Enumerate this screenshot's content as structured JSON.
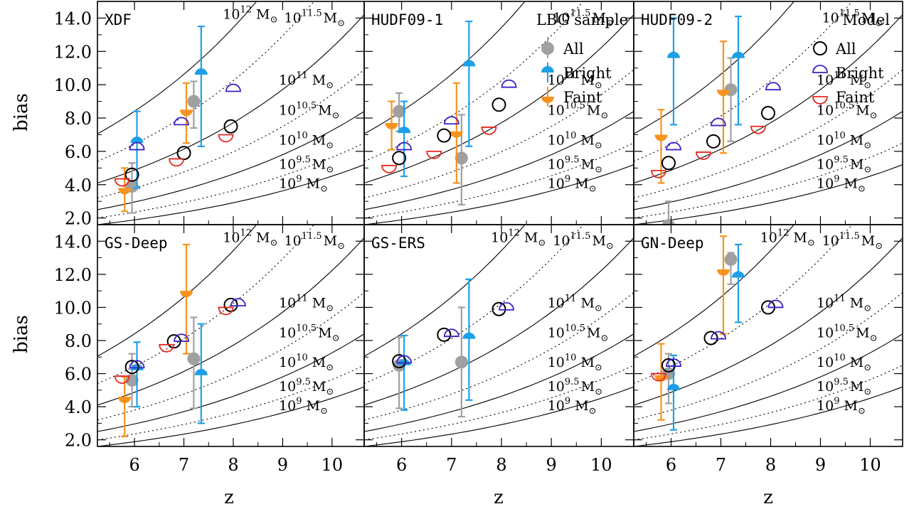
{
  "chart_data": {
    "type": "scatter",
    "xlabel": "z",
    "ylabel": "bias",
    "xlim": [
      5.25,
      10.65
    ],
    "ylim": [
      1.6,
      15.0
    ],
    "x_ticks": [
      "6",
      "7",
      "8",
      "9",
      "10"
    ],
    "y_ticks": [
      "2.0",
      "4.0",
      "6.0",
      "8.0",
      "10.0",
      "12.0",
      "14.0"
    ],
    "colors": {
      "All": "#a0a0a0",
      "Bright": "#1ea0e8",
      "Faint": "#f7931e",
      "Model_All": "#000000",
      "Model_Bright": "#3a22c8",
      "Model_Faint": "#e8281e"
    },
    "legend_lbg": {
      "title": "LBG sample",
      "items": [
        "All",
        "Bright",
        "Faint"
      ]
    },
    "legend_model": {
      "title": "Model",
      "items": [
        "All",
        "Bright",
        "Faint"
      ]
    },
    "halo_mass_tracks": [
      {
        "exp": "12",
        "style": "solid",
        "b_at_z": [
          [
            5.25,
            7.05
          ],
          [
            10.65,
            25.0
          ]
        ]
      },
      {
        "exp": "11.5",
        "style": "dotted",
        "b_at_z": [
          [
            5.25,
            5.4
          ],
          [
            10.65,
            19.0
          ]
        ]
      },
      {
        "exp": "11",
        "style": "solid",
        "b_at_z": [
          [
            5.25,
            4.1
          ],
          [
            10.65,
            14.2
          ]
        ]
      },
      {
        "exp": "10.5",
        "style": "dotted",
        "b_at_z": [
          [
            5.25,
            3.2
          ],
          [
            10.65,
            10.9
          ]
        ]
      },
      {
        "exp": "10",
        "style": "solid",
        "b_at_z": [
          [
            5.25,
            2.5
          ],
          [
            10.65,
            8.4
          ]
        ]
      },
      {
        "exp": "9.5",
        "style": "dotted",
        "b_at_z": [
          [
            5.25,
            2.0
          ],
          [
            10.65,
            6.5
          ]
        ]
      },
      {
        "exp": "9",
        "style": "solid",
        "b_at_z": [
          [
            5.25,
            1.6
          ],
          [
            10.65,
            5.2
          ]
        ]
      }
    ],
    "panels": [
      {
        "name": "XDF",
        "show_mass_labels_12": true,
        "observed": {
          "all": [
            {
              "z": 5.95,
              "b": 3.9,
              "lo": 2.3,
              "hi": 5.3
            },
            {
              "z": 7.2,
              "b": 9.0,
              "lo": 7.4,
              "hi": 10.2
            }
          ],
          "bright": [
            {
              "z": 6.05,
              "b": 6.5,
              "lo": 3.8,
              "hi": 8.4
            },
            {
              "z": 7.35,
              "b": 10.6,
              "lo": 6.3,
              "hi": 13.5
            }
          ],
          "faint": [
            {
              "z": 5.8,
              "b": 3.8,
              "lo": 2.4,
              "hi": 5.0
            },
            {
              "z": 7.05,
              "b": 8.5,
              "lo": 6.5,
              "hi": 10.1
            }
          ]
        },
        "model": {
          "all": [
            {
              "z": 5.95,
              "b": 4.6
            },
            {
              "z": 7.0,
              "b": 5.9
            },
            {
              "z": 7.95,
              "b": 7.5
            }
          ],
          "bright": [
            {
              "z": 6.05,
              "b": 6.1
            },
            {
              "z": 6.95,
              "b": 7.6
            },
            {
              "z": 8.0,
              "b": 9.6
            }
          ],
          "faint": [
            {
              "z": 5.75,
              "b": 4.35
            },
            {
              "z": 6.85,
              "b": 5.55
            },
            {
              "z": 7.85,
              "b": 7.0
            }
          ]
        }
      },
      {
        "name": "HUDF09-1",
        "show_mass_labels_12": false,
        "observed": {
          "all": [
            {
              "z": 5.95,
              "b": 8.4,
              "lo": 7.2,
              "hi": 9.5
            },
            {
              "z": 7.2,
              "b": 5.6,
              "lo": 2.8,
              "hi": 8.2
            }
          ],
          "bright": [
            {
              "z": 6.05,
              "b": 7.1,
              "lo": 4.5,
              "hi": 9.0
            },
            {
              "z": 7.35,
              "b": 11.1,
              "lo": 6.3,
              "hi": 13.8
            }
          ],
          "faint": [
            {
              "z": 5.8,
              "b": 7.7,
              "lo": 6.1,
              "hi": 9.0
            },
            {
              "z": 7.1,
              "b": 7.2,
              "lo": 4.1,
              "hi": 10.1
            }
          ]
        },
        "model": {
          "all": [
            {
              "z": 5.95,
              "b": 5.6
            },
            {
              "z": 6.85,
              "b": 6.95
            },
            {
              "z": 7.95,
              "b": 8.8
            }
          ],
          "bright": [
            {
              "z": 6.05,
              "b": 6.1
            },
            {
              "z": 7.0,
              "b": 7.65
            },
            {
              "z": 8.15,
              "b": 9.85
            }
          ],
          "faint": [
            {
              "z": 5.75,
              "b": 5.15
            },
            {
              "z": 6.65,
              "b": 6.0
            },
            {
              "z": 7.75,
              "b": 7.45
            }
          ]
        }
      },
      {
        "name": "HUDF09-2",
        "show_mass_labels_12": false,
        "observed": {
          "all": [
            {
              "z": 5.95,
              "b": 1.55,
              "lo": 0.5,
              "hi": 3.0
            },
            {
              "z": 7.2,
              "b": 9.7,
              "lo": 6.6,
              "hi": 11.6
            }
          ],
          "bright": [
            {
              "z": 6.05,
              "b": 11.6,
              "lo": 7.6,
              "hi": 14.0
            },
            {
              "z": 7.35,
              "b": 11.6,
              "lo": 7.6,
              "hi": 14.1
            }
          ],
          "faint": [
            {
              "z": 5.8,
              "b": 7.0,
              "lo": 4.1,
              "hi": 8.5
            },
            {
              "z": 7.05,
              "b": 9.7,
              "lo": 5.9,
              "hi": 12.6
            }
          ]
        },
        "model": {
          "all": [
            {
              "z": 5.95,
              "b": 5.3
            },
            {
              "z": 6.85,
              "b": 6.6
            },
            {
              "z": 7.95,
              "b": 8.3
            }
          ],
          "bright": [
            {
              "z": 6.05,
              "b": 6.1
            },
            {
              "z": 6.95,
              "b": 7.55
            },
            {
              "z": 8.05,
              "b": 9.7
            }
          ],
          "faint": [
            {
              "z": 5.75,
              "b": 4.85
            },
            {
              "z": 6.65,
              "b": 5.95
            },
            {
              "z": 7.75,
              "b": 7.5
            }
          ]
        }
      },
      {
        "name": "GS-Deep",
        "show_mass_labels_12": true,
        "observed": {
          "all": [
            {
              "z": 5.95,
              "b": 5.6,
              "lo": 4.0,
              "hi": 7.2
            },
            {
              "z": 7.2,
              "b": 6.9,
              "lo": 3.9,
              "hi": 9.4
            }
          ],
          "bright": [
            {
              "z": 6.05,
              "b": 6.2,
              "lo": 4.0,
              "hi": 7.9
            },
            {
              "z": 7.35,
              "b": 5.9,
              "lo": 3.0,
              "hi": 9.0
            }
          ],
          "faint": [
            {
              "z": 5.8,
              "b": 4.6,
              "lo": 2.2,
              "hi": 5.8
            },
            {
              "z": 7.05,
              "b": 11.0,
              "lo": 7.2,
              "hi": 13.8
            }
          ]
        },
        "model": {
          "all": [
            {
              "z": 5.95,
              "b": 6.4
            },
            {
              "z": 6.8,
              "b": 7.95
            },
            {
              "z": 7.95,
              "b": 10.15
            }
          ],
          "bright": [
            {
              "z": 6.05,
              "b": 6.35
            },
            {
              "z": 6.95,
              "b": 7.95
            },
            {
              "z": 8.1,
              "b": 10.1
            }
          ],
          "faint": [
            {
              "z": 5.75,
              "b": 5.85
            },
            {
              "z": 6.65,
              "b": 7.75
            },
            {
              "z": 7.85,
              "b": 10.0
            }
          ]
        }
      },
      {
        "name": "GS-ERS",
        "show_mass_labels_12": true,
        "observed": {
          "all": [
            {
              "z": 5.95,
              "b": 6.5,
              "lo": 3.9,
              "hi": 8.2
            },
            {
              "z": 7.2,
              "b": 6.7,
              "lo": 3.4,
              "hi": 10.0
            }
          ],
          "bright": [
            {
              "z": 6.05,
              "b": 6.5,
              "lo": 3.8,
              "hi": 8.3
            },
            {
              "z": 7.35,
              "b": 8.1,
              "lo": 4.4,
              "hi": 11.7
            }
          ],
          "faint": []
        },
        "model": {
          "all": [
            {
              "z": 5.95,
              "b": 6.75
            },
            {
              "z": 6.85,
              "b": 8.35
            },
            {
              "z": 7.95,
              "b": 9.9
            }
          ],
          "bright": [
            {
              "z": 6.05,
              "b": 6.65
            },
            {
              "z": 7.0,
              "b": 8.25
            },
            {
              "z": 8.1,
              "b": 9.85
            }
          ],
          "faint": []
        }
      },
      {
        "name": "GN-Deep",
        "show_mass_labels_12": true,
        "observed": {
          "all": [
            {
              "z": 5.95,
              "b": 6.0,
              "lo": 4.2,
              "hi": 7.2
            },
            {
              "z": 7.2,
              "b": 12.9,
              "lo": 11.4,
              "hi": 13.3
            }
          ],
          "bright": [
            {
              "z": 6.05,
              "b": 5.0,
              "lo": 2.6,
              "hi": 7.1
            },
            {
              "z": 7.35,
              "b": 11.8,
              "lo": 9.1,
              "hi": 13.8
            }
          ],
          "faint": [
            {
              "z": 5.8,
              "b": 5.9,
              "lo": 3.2,
              "hi": 7.8
            },
            {
              "z": 7.05,
              "b": 12.3,
              "lo": 8.4,
              "hi": 14.3
            }
          ]
        },
        "model": {
          "all": [
            {
              "z": 5.95,
              "b": 6.5
            },
            {
              "z": 6.8,
              "b": 8.15
            },
            {
              "z": 7.95,
              "b": 10.0
            }
          ],
          "bright": [
            {
              "z": 6.05,
              "b": 6.45
            },
            {
              "z": 6.95,
              "b": 8.1
            },
            {
              "z": 8.1,
              "b": 10.0
            }
          ],
          "faint": [
            {
              "z": 5.75,
              "b": 6.0
            }
          ]
        }
      }
    ]
  }
}
